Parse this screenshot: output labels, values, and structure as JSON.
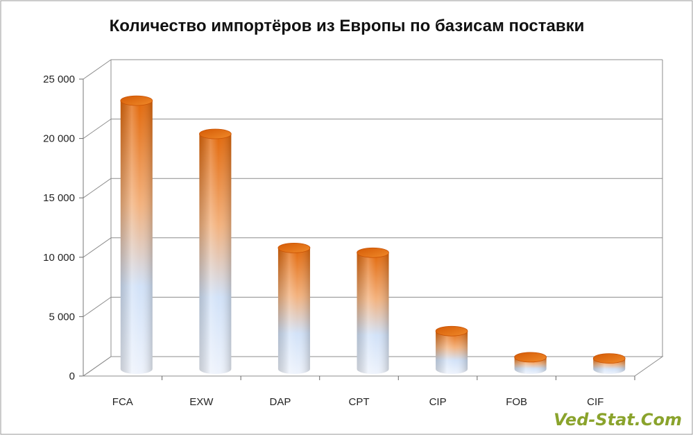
{
  "chart_data": {
    "type": "bar",
    "style": "3d-cylinder",
    "title": "Количество импортёров из Европы по базисам поставки",
    "xlabel": "",
    "ylabel": "",
    "categories": [
      "FCA",
      "EXW",
      "DAP",
      "CPT",
      "CIP",
      "FOB",
      "CIF"
    ],
    "values": [
      22600,
      19800,
      10200,
      9800,
      3200,
      1000,
      900
    ],
    "ylim": [
      0,
      25000
    ],
    "yticks": [
      0,
      5000,
      10000,
      15000,
      20000,
      25000
    ],
    "ytick_labels": [
      "0",
      "5 000",
      "10 000",
      "15 000",
      "20 000",
      "25 000"
    ],
    "grid": true,
    "legend": "none",
    "colors": {
      "top": "#e8720c",
      "bottom": "#c8dcf8",
      "grid": "#8c8c8c"
    }
  },
  "watermark": "Ved-Stat.Com"
}
